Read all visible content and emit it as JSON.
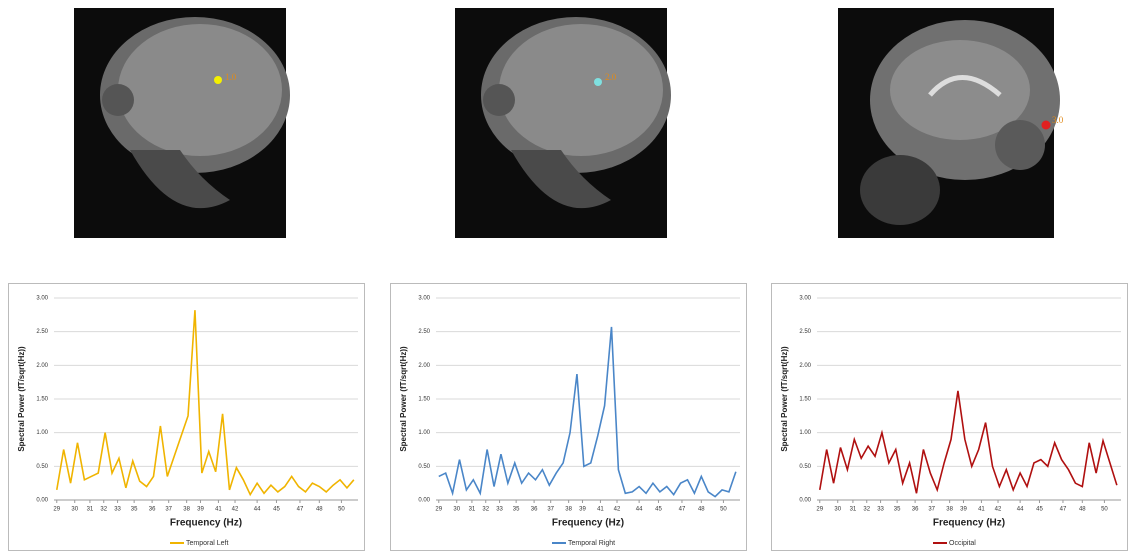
{
  "images": [
    {
      "label": "1.0"
    },
    {
      "label": "2.0"
    },
    {
      "label": "3.0"
    }
  ],
  "chart_data": [
    {
      "type": "line",
      "x_label": "Frequency (Hz)",
      "y_label": "Spectral Power (fT/sqrt(Hz))",
      "x": [
        29,
        29.5,
        30,
        30.5,
        31,
        31.5,
        32,
        32.5,
        33,
        33.5,
        34,
        34.5,
        35,
        35.5,
        36,
        36.5,
        37,
        37.5,
        38,
        38.5,
        39,
        39.5,
        40,
        40.5,
        41,
        41.5,
        42,
        42.5,
        43,
        43.5,
        44,
        44.5,
        45,
        45.5,
        46,
        46.5,
        47,
        47.5,
        48,
        48.5,
        49,
        49.5,
        50,
        50.5
      ],
      "series": [
        {
          "name": "Temporal Left",
          "color": "#f0b400",
          "values": [
            0.15,
            0.75,
            0.25,
            0.85,
            0.3,
            0.35,
            0.4,
            1.0,
            0.4,
            0.62,
            0.18,
            0.58,
            0.28,
            0.2,
            0.35,
            1.1,
            0.35,
            0.65,
            0.95,
            1.25,
            2.82,
            0.4,
            0.72,
            0.42,
            1.28,
            0.15,
            0.48,
            0.3,
            0.08,
            0.25,
            0.1,
            0.22,
            0.12,
            0.2,
            0.35,
            0.2,
            0.12,
            0.25,
            0.2,
            0.12,
            0.22,
            0.3,
            0.18,
            0.3
          ]
        }
      ],
      "xlim": [
        28.8,
        50.8
      ],
      "xticks": [
        {
          "value": 29,
          "label": "29"
        },
        {
          "value": 30.3,
          "label": "30"
        },
        {
          "value": 31.4,
          "label": "31"
        },
        {
          "value": 32.4,
          "label": "32"
        },
        {
          "value": 33.4,
          "label": "33"
        },
        {
          "value": 34.6,
          "label": "35"
        },
        {
          "value": 35.9,
          "label": "36"
        },
        {
          "value": 37.1,
          "label": "37"
        },
        {
          "value": 38.4,
          "label": "38"
        },
        {
          "value": 39.4,
          "label": "39"
        },
        {
          "value": 40.7,
          "label": "41"
        },
        {
          "value": 41.9,
          "label": "42"
        },
        {
          "value": 43.5,
          "label": "44"
        },
        {
          "value": 44.9,
          "label": "45"
        },
        {
          "value": 46.6,
          "label": "47"
        },
        {
          "value": 48.0,
          "label": "48"
        },
        {
          "value": 49.6,
          "label": "50"
        }
      ],
      "ylim": [
        0,
        3
      ],
      "yticks": [
        {
          "value": 0,
          "label": "0.00"
        },
        {
          "value": 0.5,
          "label": "0.50"
        },
        {
          "value": 1,
          "label": "1.00"
        },
        {
          "value": 1.5,
          "label": "1.50"
        },
        {
          "value": 2,
          "label": "2.00"
        },
        {
          "value": 2.5,
          "label": "2.50"
        },
        {
          "value": 3,
          "label": "3.00"
        }
      ],
      "grid": true
    },
    {
      "type": "line",
      "x_label": "Frequency (Hz)",
      "y_label": "Spectral Power (fT/sqrt(Hz))",
      "x": [
        29,
        29.5,
        30,
        30.5,
        31,
        31.5,
        32,
        32.5,
        33,
        33.5,
        34,
        34.5,
        35,
        35.5,
        36,
        36.5,
        37,
        37.5,
        38,
        38.5,
        39,
        39.5,
        40,
        40.5,
        41,
        41.5,
        42,
        42.5,
        43,
        43.5,
        44,
        44.5,
        45,
        45.5,
        46,
        46.5,
        47,
        47.5,
        48,
        48.5,
        49,
        49.5,
        50,
        50.5
      ],
      "series": [
        {
          "name": "Temporal Right",
          "color": "#4a86c8",
          "values": [
            0.35,
            0.4,
            0.1,
            0.6,
            0.15,
            0.3,
            0.1,
            0.75,
            0.2,
            0.68,
            0.25,
            0.55,
            0.25,
            0.4,
            0.3,
            0.45,
            0.22,
            0.4,
            0.55,
            1.0,
            1.87,
            0.5,
            0.55,
            0.95,
            1.4,
            2.57,
            0.45,
            0.1,
            0.12,
            0.2,
            0.1,
            0.25,
            0.12,
            0.2,
            0.08,
            0.25,
            0.3,
            0.1,
            0.35,
            0.12,
            0.05,
            0.15,
            0.12,
            0.42
          ]
        }
      ],
      "xlim": [
        28.8,
        50.8
      ],
      "xticks": [
        {
          "value": 29,
          "label": "29"
        },
        {
          "value": 30.3,
          "label": "30"
        },
        {
          "value": 31.4,
          "label": "31"
        },
        {
          "value": 32.4,
          "label": "32"
        },
        {
          "value": 33.4,
          "label": "33"
        },
        {
          "value": 34.6,
          "label": "35"
        },
        {
          "value": 35.9,
          "label": "36"
        },
        {
          "value": 37.1,
          "label": "37"
        },
        {
          "value": 38.4,
          "label": "38"
        },
        {
          "value": 39.4,
          "label": "39"
        },
        {
          "value": 40.7,
          "label": "41"
        },
        {
          "value": 41.9,
          "label": "42"
        },
        {
          "value": 43.5,
          "label": "44"
        },
        {
          "value": 44.9,
          "label": "45"
        },
        {
          "value": 46.6,
          "label": "47"
        },
        {
          "value": 48.0,
          "label": "48"
        },
        {
          "value": 49.6,
          "label": "50"
        }
      ],
      "ylim": [
        0,
        3
      ],
      "yticks": [
        {
          "value": 0,
          "label": "0.00"
        },
        {
          "value": 0.5,
          "label": "0.50"
        },
        {
          "value": 1,
          "label": "1.00"
        },
        {
          "value": 1.5,
          "label": "1.50"
        },
        {
          "value": 2,
          "label": "2.00"
        },
        {
          "value": 2.5,
          "label": "2.50"
        },
        {
          "value": 3,
          "label": "3.00"
        }
      ],
      "grid": true
    },
    {
      "type": "line",
      "x_label": "Frequency (Hz)",
      "y_label": "Spectral Power (fT/sqrt(Hz))",
      "x": [
        29,
        29.5,
        30,
        30.5,
        31,
        31.5,
        32,
        32.5,
        33,
        33.5,
        34,
        34.5,
        35,
        35.5,
        36,
        36.5,
        37,
        37.5,
        38,
        38.5,
        39,
        39.5,
        40,
        40.5,
        41,
        41.5,
        42,
        42.5,
        43,
        43.5,
        44,
        44.5,
        45,
        45.5,
        46,
        46.5,
        47,
        47.5,
        48,
        48.5,
        49,
        49.5,
        50,
        50.5
      ],
      "series": [
        {
          "name": "Occipital",
          "color": "#b01010",
          "values": [
            0.15,
            0.75,
            0.25,
            0.78,
            0.45,
            0.9,
            0.62,
            0.8,
            0.65,
            1.0,
            0.55,
            0.75,
            0.25,
            0.55,
            0.1,
            0.75,
            0.4,
            0.15,
            0.55,
            0.9,
            1.62,
            0.9,
            0.5,
            0.75,
            1.15,
            0.5,
            0.2,
            0.45,
            0.15,
            0.4,
            0.2,
            0.55,
            0.6,
            0.5,
            0.85,
            0.6,
            0.45,
            0.25,
            0.2,
            0.85,
            0.4,
            0.88,
            0.55,
            0.22
          ]
        }
      ],
      "xlim": [
        28.8,
        50.8
      ],
      "xticks": [
        {
          "value": 29,
          "label": "29"
        },
        {
          "value": 30.3,
          "label": "30"
        },
        {
          "value": 31.4,
          "label": "31"
        },
        {
          "value": 32.4,
          "label": "32"
        },
        {
          "value": 33.4,
          "label": "33"
        },
        {
          "value": 34.6,
          "label": "35"
        },
        {
          "value": 35.9,
          "label": "36"
        },
        {
          "value": 37.1,
          "label": "37"
        },
        {
          "value": 38.4,
          "label": "38"
        },
        {
          "value": 39.4,
          "label": "39"
        },
        {
          "value": 40.7,
          "label": "41"
        },
        {
          "value": 41.9,
          "label": "42"
        },
        {
          "value": 43.5,
          "label": "44"
        },
        {
          "value": 44.9,
          "label": "45"
        },
        {
          "value": 46.6,
          "label": "47"
        },
        {
          "value": 48.0,
          "label": "48"
        },
        {
          "value": 49.6,
          "label": "50"
        }
      ],
      "ylim": [
        0,
        3
      ],
      "yticks": [
        {
          "value": 0,
          "label": "0.00"
        },
        {
          "value": 0.5,
          "label": "0.50"
        },
        {
          "value": 1,
          "label": "1.00"
        },
        {
          "value": 1.5,
          "label": "1.50"
        },
        {
          "value": 2,
          "label": "2.00"
        },
        {
          "value": 2.5,
          "label": "2.50"
        },
        {
          "value": 3,
          "label": "3.00"
        }
      ],
      "grid": true
    }
  ]
}
